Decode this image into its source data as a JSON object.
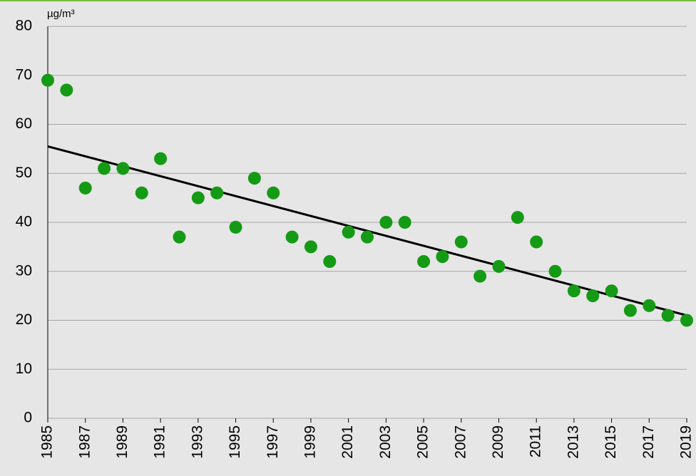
{
  "chart_data": {
    "type": "scatter",
    "unit_label": "µg/m³",
    "x": [
      1985,
      1986,
      1987,
      1988,
      1989,
      1990,
      1991,
      1992,
      1993,
      1994,
      1995,
      1996,
      1997,
      1998,
      1999,
      2000,
      2001,
      2002,
      2003,
      2004,
      2005,
      2006,
      2007,
      2008,
      2009,
      2010,
      2011,
      2012,
      2013,
      2014,
      2015,
      2016,
      2017,
      2018,
      2019
    ],
    "values": [
      69,
      67,
      47,
      51,
      51,
      46,
      53,
      37,
      45,
      46,
      39,
      49,
      46,
      37,
      35,
      32,
      38,
      37,
      40,
      40,
      32,
      33,
      36,
      29,
      31,
      41,
      36,
      30,
      26,
      25,
      26,
      22,
      23,
      21,
      20
    ],
    "color": "#159a15",
    "trendline": {
      "x": [
        1985,
        2019
      ],
      "y": [
        55.5,
        21
      ],
      "color": "#000000"
    },
    "xlim": [
      1985,
      2019
    ],
    "xticks": [
      1985,
      1987,
      1989,
      1991,
      1993,
      1995,
      1997,
      1999,
      2001,
      2003,
      2005,
      2007,
      2009,
      2011,
      2013,
      2015,
      2017,
      2019
    ],
    "ylim": [
      0,
      80
    ],
    "yticks": [
      0,
      10,
      20,
      30,
      40,
      50,
      60,
      70,
      80
    ],
    "grid": true
  }
}
